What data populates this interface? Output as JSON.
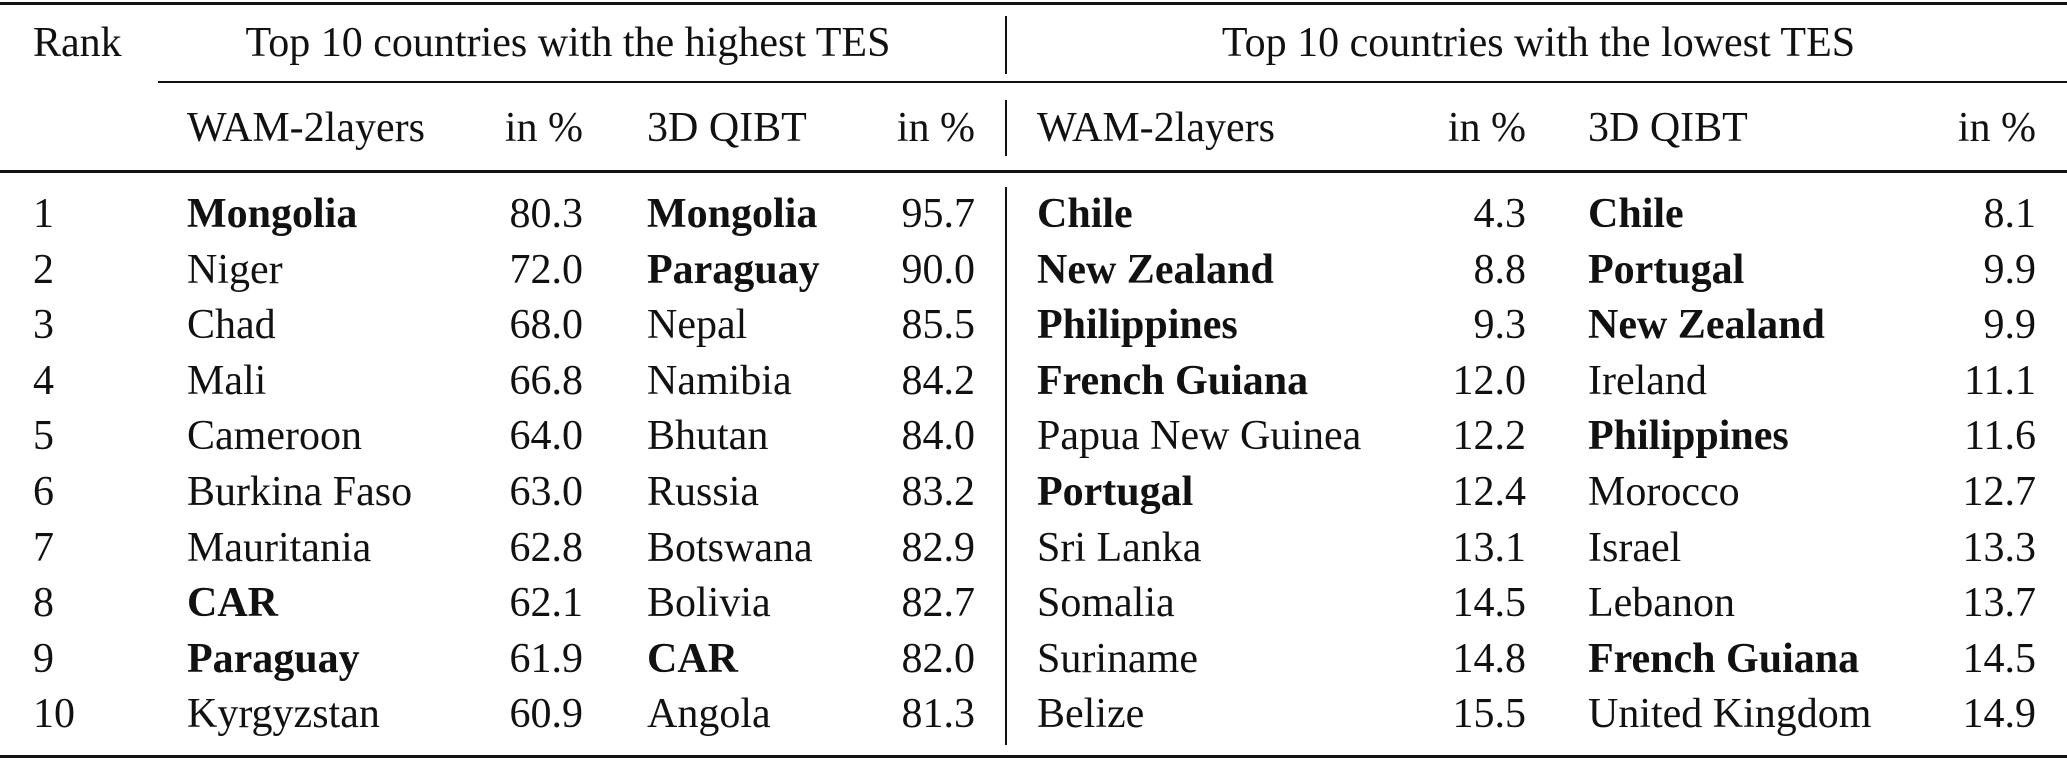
{
  "header": {
    "rank": "Rank",
    "highest_group": "Top 10 countries with the highest TES",
    "lowest_group": "Top 10 countries with the lowest TES",
    "columns": [
      "WAM-2layers",
      "in %",
      "3D QIBT",
      "in %",
      "WAM-2layers",
      "in %",
      "3D QIBT",
      "in %"
    ]
  },
  "rows": [
    {
      "rank": "1",
      "cells": [
        {
          "name": "Mongolia",
          "bold": true,
          "value": "80.3"
        },
        {
          "name": "Mongolia",
          "bold": true,
          "value": "95.7"
        },
        {
          "name": "Chile",
          "bold": true,
          "value": "4.3"
        },
        {
          "name": "Chile",
          "bold": true,
          "value": "8.1"
        }
      ]
    },
    {
      "rank": "2",
      "cells": [
        {
          "name": "Niger",
          "bold": false,
          "value": "72.0"
        },
        {
          "name": "Paraguay",
          "bold": true,
          "value": "90.0"
        },
        {
          "name": "New Zealand",
          "bold": true,
          "value": "8.8"
        },
        {
          "name": "Portugal",
          "bold": true,
          "value": "9.9"
        }
      ]
    },
    {
      "rank": "3",
      "cells": [
        {
          "name": "Chad",
          "bold": false,
          "value": "68.0"
        },
        {
          "name": "Nepal",
          "bold": false,
          "value": "85.5"
        },
        {
          "name": "Philippines",
          "bold": true,
          "value": "9.3"
        },
        {
          "name": "New Zealand",
          "bold": true,
          "value": "9.9"
        }
      ]
    },
    {
      "rank": "4",
      "cells": [
        {
          "name": "Mali",
          "bold": false,
          "value": "66.8"
        },
        {
          "name": "Namibia",
          "bold": false,
          "value": "84.2"
        },
        {
          "name": "French Guiana",
          "bold": true,
          "value": "12.0"
        },
        {
          "name": "Ireland",
          "bold": false,
          "value": "11.1"
        }
      ]
    },
    {
      "rank": "5",
      "cells": [
        {
          "name": "Cameroon",
          "bold": false,
          "value": "64.0"
        },
        {
          "name": "Bhutan",
          "bold": false,
          "value": "84.0"
        },
        {
          "name": "Papua New Guinea",
          "bold": false,
          "value": "12.2"
        },
        {
          "name": "Philippines",
          "bold": true,
          "value": "11.6"
        }
      ]
    },
    {
      "rank": "6",
      "cells": [
        {
          "name": "Burkina Faso",
          "bold": false,
          "value": "63.0"
        },
        {
          "name": "Russia",
          "bold": false,
          "value": "83.2"
        },
        {
          "name": "Portugal",
          "bold": true,
          "value": "12.4"
        },
        {
          "name": "Morocco",
          "bold": false,
          "value": "12.7"
        }
      ]
    },
    {
      "rank": "7",
      "cells": [
        {
          "name": "Mauritania",
          "bold": false,
          "value": "62.8"
        },
        {
          "name": "Botswana",
          "bold": false,
          "value": "82.9"
        },
        {
          "name": "Sri Lanka",
          "bold": false,
          "value": "13.1"
        },
        {
          "name": "Israel",
          "bold": false,
          "value": "13.3"
        }
      ]
    },
    {
      "rank": "8",
      "cells": [
        {
          "name": "CAR",
          "bold": true,
          "value": "62.1"
        },
        {
          "name": "Bolivia",
          "bold": false,
          "value": "82.7"
        },
        {
          "name": "Somalia",
          "bold": false,
          "value": "14.5"
        },
        {
          "name": "Lebanon",
          "bold": false,
          "value": "13.7"
        }
      ]
    },
    {
      "rank": "9",
      "cells": [
        {
          "name": "Paraguay",
          "bold": true,
          "value": "61.9"
        },
        {
          "name": "CAR",
          "bold": true,
          "value": "82.0"
        },
        {
          "name": "Suriname",
          "bold": false,
          "value": "14.8"
        },
        {
          "name": "French Guiana",
          "bold": true,
          "value": "14.5"
        }
      ]
    },
    {
      "rank": "10",
      "cells": [
        {
          "name": "Kyrgyzstan",
          "bold": false,
          "value": "60.9"
        },
        {
          "name": "Angola",
          "bold": false,
          "value": "81.3"
        },
        {
          "name": "Belize",
          "bold": false,
          "value": "15.5"
        },
        {
          "name": "United Kingdom",
          "bold": false,
          "value": "14.9"
        }
      ]
    }
  ]
}
